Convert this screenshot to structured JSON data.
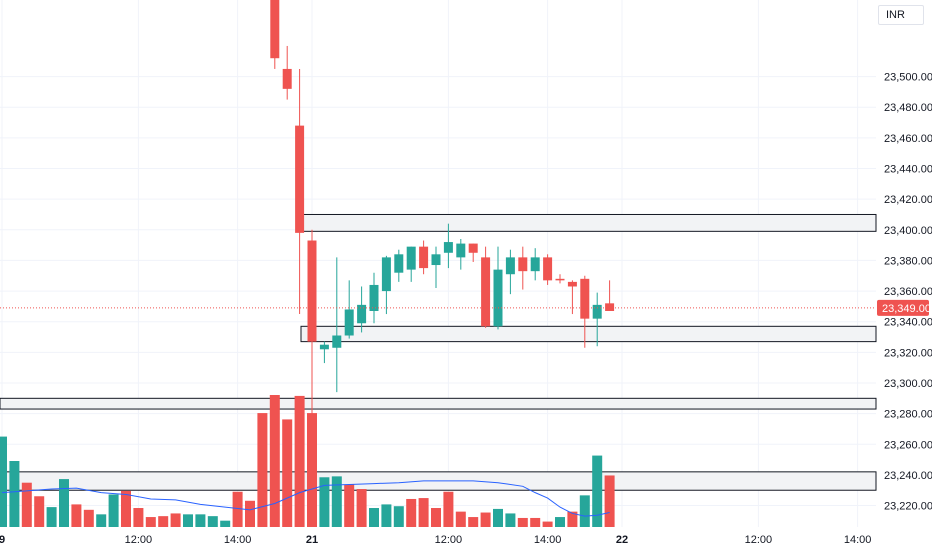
{
  "app": {
    "currency_label": "INR"
  },
  "colors": {
    "up": "#26a69a",
    "down": "#ef5350",
    "volume_up": "#26a69a",
    "volume_down": "#ef5350",
    "ma_line": "#2962ff",
    "grid": "#f0f3fa",
    "zone_fill": "#f2f3f5",
    "zone_border": "#131722",
    "price_line": "#ef5350",
    "price_tag": "#ef5350"
  },
  "chart_data": {
    "type": "candlestick",
    "ylim": [
      23206,
      23550
    ],
    "y_ticks": [
      "23,220.00",
      "23,240.00",
      "23,260.00",
      "23,280.00",
      "23,300.00",
      "23,320.00",
      "23,340.00",
      "23,360.00",
      "23,380.00",
      "23,400.00",
      "23,420.00",
      "23,440.00",
      "23,460.00",
      "23,480.00",
      "23,500.00"
    ],
    "y_tick_values": [
      23220,
      23240,
      23260,
      23280,
      23300,
      23320,
      23340,
      23360,
      23380,
      23400,
      23420,
      23440,
      23460,
      23480,
      23500
    ],
    "x_ticks": [
      {
        "label": "9",
        "slot": 0,
        "bold": true
      },
      {
        "label": "12:00",
        "slot": 11,
        "bold": false
      },
      {
        "label": "14:00",
        "slot": 19,
        "bold": false
      },
      {
        "label": "21",
        "slot": 25,
        "bold": true
      },
      {
        "label": "12:00",
        "slot": 36,
        "bold": false
      },
      {
        "label": "14:00",
        "slot": 44,
        "bold": false
      },
      {
        "label": "22",
        "slot": 50,
        "bold": true
      },
      {
        "label": "12:00",
        "slot": 61,
        "bold": false
      },
      {
        "label": "14:00",
        "slot": 69,
        "bold": false
      }
    ],
    "current_price": 23349.0,
    "current_price_label": "23,349.00",
    "candles": [
      {
        "slot": 22,
        "o": 23555,
        "h": 23560,
        "l": 23505,
        "c": 23512
      },
      {
        "slot": 23,
        "o": 23505,
        "h": 23520,
        "l": 23485,
        "c": 23492
      },
      {
        "slot": 24,
        "o": 23468,
        "h": 23505,
        "l": 23345,
        "c": 23398
      },
      {
        "slot": 25,
        "o": 23393,
        "h": 23400,
        "l": 23276,
        "c": 23327
      },
      {
        "slot": 26,
        "o": 23322,
        "h": 23327,
        "l": 23313,
        "c": 23325
      },
      {
        "slot": 27,
        "o": 23323,
        "h": 23382,
        "l": 23294,
        "c": 23331
      },
      {
        "slot": 28,
        "o": 23331,
        "h": 23367,
        "l": 23329,
        "c": 23348
      },
      {
        "slot": 29,
        "o": 23339,
        "h": 23363,
        "l": 23333,
        "c": 23351
      },
      {
        "slot": 30,
        "o": 23347,
        "h": 23372,
        "l": 23339,
        "c": 23364
      },
      {
        "slot": 31,
        "o": 23360,
        "h": 23383,
        "l": 23345,
        "c": 23382
      },
      {
        "slot": 32,
        "o": 23372,
        "h": 23387,
        "l": 23366,
        "c": 23384
      },
      {
        "slot": 33,
        "o": 23374,
        "h": 23389,
        "l": 23366,
        "c": 23389
      },
      {
        "slot": 34,
        "o": 23389,
        "h": 23393,
        "l": 23371,
        "c": 23375
      },
      {
        "slot": 35,
        "o": 23377,
        "h": 23389,
        "l": 23362,
        "c": 23384
      },
      {
        "slot": 36,
        "o": 23385,
        "h": 23404,
        "l": 23375,
        "c": 23392
      },
      {
        "slot": 37,
        "o": 23382,
        "h": 23394,
        "l": 23374,
        "c": 23391
      },
      {
        "slot": 38,
        "o": 23391,
        "h": 23391,
        "l": 23379,
        "c": 23385
      },
      {
        "slot": 39,
        "o": 23382,
        "h": 23389,
        "l": 23336,
        "c": 23337
      },
      {
        "slot": 40,
        "o": 23337,
        "h": 23389,
        "l": 23335,
        "c": 23374
      },
      {
        "slot": 41,
        "o": 23371,
        "h": 23387,
        "l": 23358,
        "c": 23382
      },
      {
        "slot": 42,
        "o": 23382,
        "h": 23389,
        "l": 23361,
        "c": 23373
      },
      {
        "slot": 43,
        "o": 23373,
        "h": 23388,
        "l": 23367,
        "c": 23382
      },
      {
        "slot": 44,
        "o": 23382,
        "h": 23384,
        "l": 23364,
        "c": 23367
      },
      {
        "slot": 45,
        "o": 23368,
        "h": 23371,
        "l": 23365,
        "c": 23367
      },
      {
        "slot": 46,
        "o": 23366,
        "h": 23367,
        "l": 23345,
        "c": 23363
      },
      {
        "slot": 47,
        "o": 23368,
        "h": 23370,
        "l": 23323,
        "c": 23342
      },
      {
        "slot": 48,
        "o": 23342,
        "h": 23359,
        "l": 23324,
        "c": 23351
      },
      {
        "slot": 49,
        "o": 23352,
        "h": 23367,
        "l": 23347,
        "c": 23347
      }
    ],
    "volume_bars": [
      {
        "slot": 0,
        "v": 100,
        "up": true
      },
      {
        "slot": 1,
        "v": 73,
        "up": true
      },
      {
        "slot": 2,
        "v": 49,
        "up": false
      },
      {
        "slot": 3,
        "v": 34,
        "up": false
      },
      {
        "slot": 4,
        "v": 22,
        "up": true
      },
      {
        "slot": 5,
        "v": 53,
        "up": true
      },
      {
        "slot": 6,
        "v": 25,
        "up": false
      },
      {
        "slot": 7,
        "v": 19,
        "up": false
      },
      {
        "slot": 8,
        "v": 14,
        "up": true
      },
      {
        "slot": 9,
        "v": 36,
        "up": true
      },
      {
        "slot": 10,
        "v": 40,
        "up": false
      },
      {
        "slot": 11,
        "v": 21,
        "up": false
      },
      {
        "slot": 12,
        "v": 11,
        "up": false
      },
      {
        "slot": 13,
        "v": 12,
        "up": false
      },
      {
        "slot": 14,
        "v": 15,
        "up": false
      },
      {
        "slot": 15,
        "v": 14,
        "up": true
      },
      {
        "slot": 16,
        "v": 14,
        "up": true
      },
      {
        "slot": 17,
        "v": 12,
        "up": true
      },
      {
        "slot": 18,
        "v": 7,
        "up": true
      },
      {
        "slot": 19,
        "v": 39,
        "up": false
      },
      {
        "slot": 20,
        "v": 29,
        "up": false
      },
      {
        "slot": 21,
        "v": 126,
        "up": false
      },
      {
        "slot": 22,
        "v": 146,
        "up": false
      },
      {
        "slot": 23,
        "v": 119,
        "up": false
      },
      {
        "slot": 24,
        "v": 145,
        "up": false
      },
      {
        "slot": 25,
        "v": 126,
        "up": false
      },
      {
        "slot": 26,
        "v": 55,
        "up": true
      },
      {
        "slot": 27,
        "v": 56,
        "up": true
      },
      {
        "slot": 28,
        "v": 47,
        "up": false
      },
      {
        "slot": 29,
        "v": 42,
        "up": false
      },
      {
        "slot": 30,
        "v": 21,
        "up": true
      },
      {
        "slot": 31,
        "v": 25,
        "up": true
      },
      {
        "slot": 32,
        "v": 23,
        "up": true
      },
      {
        "slot": 33,
        "v": 31,
        "up": false
      },
      {
        "slot": 34,
        "v": 32,
        "up": false
      },
      {
        "slot": 35,
        "v": 21,
        "up": false
      },
      {
        "slot": 36,
        "v": 39,
        "up": false
      },
      {
        "slot": 37,
        "v": 17,
        "up": false
      },
      {
        "slot": 38,
        "v": 11,
        "up": false
      },
      {
        "slot": 39,
        "v": 16,
        "up": false
      },
      {
        "slot": 40,
        "v": 20,
        "up": true
      },
      {
        "slot": 41,
        "v": 15,
        "up": true
      },
      {
        "slot": 42,
        "v": 10,
        "up": false
      },
      {
        "slot": 43,
        "v": 10,
        "up": false
      },
      {
        "slot": 44,
        "v": 6,
        "up": false
      },
      {
        "slot": 45,
        "v": 11,
        "up": true
      },
      {
        "slot": 46,
        "v": 17,
        "up": false
      },
      {
        "slot": 47,
        "v": 35,
        "up": true
      },
      {
        "slot": 48,
        "v": 79,
        "up": true
      },
      {
        "slot": 49,
        "v": 57,
        "up": false
      }
    ],
    "volume_ma": [
      {
        "slot": 0,
        "v": 38
      },
      {
        "slot": 2,
        "v": 40
      },
      {
        "slot": 4,
        "v": 42
      },
      {
        "slot": 6,
        "v": 43
      },
      {
        "slot": 8,
        "v": 38
      },
      {
        "slot": 10,
        "v": 36
      },
      {
        "slot": 12,
        "v": 31
      },
      {
        "slot": 14,
        "v": 30
      },
      {
        "slot": 16,
        "v": 25
      },
      {
        "slot": 18,
        "v": 22
      },
      {
        "slot": 20,
        "v": 19
      },
      {
        "slot": 22,
        "v": 26
      },
      {
        "slot": 24,
        "v": 38
      },
      {
        "slot": 26,
        "v": 46
      },
      {
        "slot": 28,
        "v": 47
      },
      {
        "slot": 30,
        "v": 48
      },
      {
        "slot": 32,
        "v": 49
      },
      {
        "slot": 34,
        "v": 51
      },
      {
        "slot": 36,
        "v": 51
      },
      {
        "slot": 38,
        "v": 51
      },
      {
        "slot": 40,
        "v": 49
      },
      {
        "slot": 42,
        "v": 45
      },
      {
        "slot": 43,
        "v": 38
      },
      {
        "slot": 44,
        "v": 32
      },
      {
        "slot": 45,
        "v": 22
      },
      {
        "slot": 46,
        "v": 15
      },
      {
        "slot": 47,
        "v": 12
      },
      {
        "slot": 48,
        "v": 13
      },
      {
        "slot": 49,
        "v": 16
      }
    ],
    "zones": [
      {
        "from": 23399,
        "to": 23410
      },
      {
        "from": 23327,
        "to": 23337
      },
      {
        "from": 23283,
        "to": 23290
      },
      {
        "from": 23230,
        "to": 23242
      }
    ]
  }
}
